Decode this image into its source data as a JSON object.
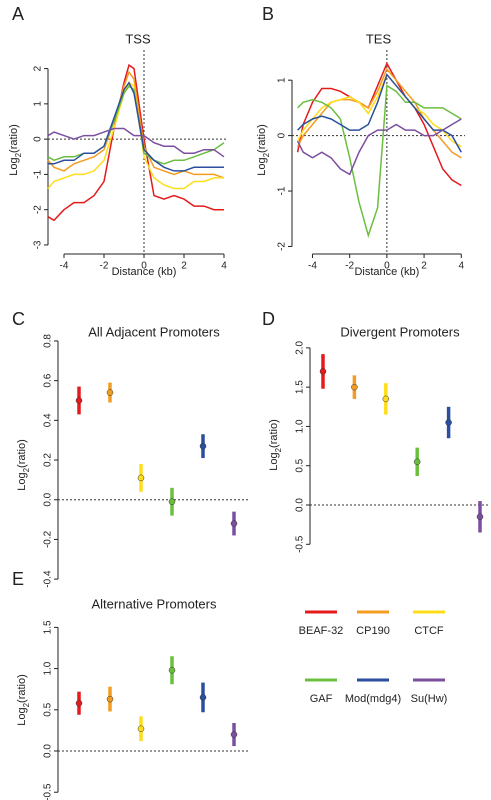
{
  "chart_data": [
    {
      "type": "line",
      "panel": "A",
      "title": "TSS",
      "xlabel": "Distance (kb)",
      "ylabel": [
        "Log",
        "2",
        "(ratio)"
      ],
      "x": [
        -4.8,
        -4.5,
        -4,
        -3.5,
        -3,
        -2.5,
        -2,
        -1.5,
        -1,
        -0.75,
        -0.5,
        0,
        0.5,
        1,
        1.5,
        2,
        2.5,
        3,
        3.5,
        4
      ],
      "xlim": [
        -4.8,
        4.2
      ],
      "xticks": [
        -4,
        -2,
        0,
        2,
        4
      ],
      "ylim": [
        -3.2,
        2.3
      ],
      "yticks": [
        -3,
        -2,
        -1,
        0,
        1,
        2
      ],
      "series": [
        {
          "name": "BEAF-32",
          "color": "#e41a1c",
          "values": [
            -2.2,
            -2.3,
            -2.0,
            -1.8,
            -1.8,
            -1.6,
            -1.2,
            0.3,
            1.6,
            2.1,
            2.0,
            0.0,
            -1.6,
            -1.7,
            -1.6,
            -1.7,
            -1.9,
            -1.9,
            -2.0,
            -2.0
          ]
        },
        {
          "name": "CP190",
          "color": "#f39c1f",
          "values": [
            -0.6,
            -0.8,
            -0.9,
            -0.7,
            -0.6,
            -0.5,
            -0.3,
            0.5,
            1.5,
            1.9,
            1.7,
            -0.2,
            -0.8,
            -0.9,
            -1.0,
            -0.9,
            -1.0,
            -1.0,
            -1.0,
            -1.1
          ]
        },
        {
          "name": "CTCF",
          "color": "#ffdd1a",
          "values": [
            -1.4,
            -1.2,
            -1.1,
            -1.0,
            -1.0,
            -0.9,
            -0.6,
            0.3,
            1.3,
            1.6,
            1.5,
            -0.5,
            -1.1,
            -1.3,
            -1.4,
            -1.4,
            -1.2,
            -1.2,
            -1.1,
            -1.1
          ]
        },
        {
          "name": "GAF",
          "color": "#6abf3f",
          "values": [
            -0.5,
            -0.6,
            -0.5,
            -0.5,
            -0.4,
            -0.4,
            -0.2,
            0.5,
            1.3,
            1.5,
            1.4,
            -0.4,
            -0.6,
            -0.7,
            -0.6,
            -0.6,
            -0.5,
            -0.4,
            -0.3,
            -0.1
          ]
        },
        {
          "name": "Mod(mdg4)",
          "color": "#2b4fa0",
          "values": [
            -0.7,
            -0.7,
            -0.6,
            -0.6,
            -0.4,
            -0.4,
            -0.2,
            0.6,
            1.4,
            1.6,
            1.3,
            -0.3,
            -0.6,
            -0.8,
            -0.9,
            -0.9,
            -0.8,
            -0.8,
            -0.8,
            -0.8
          ]
        },
        {
          "name": "Su(Hw)",
          "color": "#7b4fa0",
          "values": [
            0.1,
            0.2,
            0.1,
            0.0,
            0.1,
            0.1,
            0.2,
            0.3,
            0.3,
            0.2,
            0.1,
            0.1,
            -0.1,
            -0.2,
            -0.2,
            -0.4,
            -0.4,
            -0.3,
            -0.3,
            -0.5
          ]
        }
      ]
    },
    {
      "type": "line",
      "panel": "B",
      "title": "TES",
      "xlabel": "Distance (kb)",
      "ylabel": [
        "Log",
        "2",
        "(ratio)"
      ],
      "x": [
        -4.8,
        -4.5,
        -4,
        -3.5,
        -3,
        -2.5,
        -2,
        -1.5,
        -1,
        -0.5,
        0,
        0.5,
        1,
        1.5,
        2,
        2.5,
        3,
        3.5,
        4
      ],
      "xlim": [
        -5.1,
        4.2
      ],
      "xticks": [
        -4,
        -2,
        0,
        2,
        4
      ],
      "ylim": [
        -2.1,
        1.4
      ],
      "yticks": [
        -2,
        -1,
        0,
        1
      ],
      "series": [
        {
          "name": "BEAF-32",
          "color": "#e41a1c",
          "values": [
            -0.3,
            0.2,
            0.6,
            0.85,
            0.85,
            0.8,
            0.7,
            0.6,
            0.5,
            0.9,
            1.3,
            1.0,
            0.7,
            0.5,
            0.2,
            -0.2,
            -0.6,
            -0.8,
            -0.9
          ]
        },
        {
          "name": "CP190",
          "color": "#f39c1f",
          "values": [
            -0.2,
            0,
            0.2,
            0.4,
            0.6,
            0.65,
            0.65,
            0.6,
            0.5,
            0.8,
            1.2,
            1.0,
            0.8,
            0.6,
            0.3,
            0.1,
            -0.1,
            -0.3,
            -0.4
          ]
        },
        {
          "name": "CTCF",
          "color": "#ffdd1a",
          "values": [
            -0.1,
            0.1,
            0.3,
            0.5,
            0.6,
            0.65,
            0.7,
            0.6,
            0.4,
            0.7,
            1.1,
            0.9,
            0.7,
            0.5,
            0.4,
            0.2,
            0.1,
            -0.1,
            -0.2
          ]
        },
        {
          "name": "GAF",
          "color": "#6abf3f",
          "values": [
            0.5,
            0.6,
            0.65,
            0.6,
            0.5,
            0.3,
            -0.4,
            -1.2,
            -1.8,
            -1.3,
            0.9,
            0.8,
            0.6,
            0.6,
            0.5,
            0.5,
            0.5,
            0.4,
            0.3
          ]
        },
        {
          "name": "Mod(mdg4)",
          "color": "#2b4fa0",
          "values": [
            0.1,
            0.2,
            0.3,
            0.35,
            0.3,
            0.2,
            0.1,
            0.1,
            0.2,
            0.6,
            1.1,
            0.9,
            0.7,
            0.5,
            0.3,
            0.1,
            0.1,
            0.0,
            -0.3
          ]
        },
        {
          "name": "Su(Hw)",
          "color": "#7b4fa0",
          "values": [
            -0.1,
            -0.3,
            -0.4,
            -0.3,
            -0.4,
            -0.6,
            -0.7,
            -0.3,
            0.0,
            0.1,
            0.1,
            0.2,
            0.1,
            0.1,
            0.0,
            0.0,
            0.1,
            0.2,
            0.3
          ]
        }
      ]
    },
    {
      "type": "errorbar",
      "panel": "C",
      "title": "All Adjacent Promoters",
      "ylabel": [
        "Log",
        "2",
        "(ratio)"
      ],
      "ylim": [
        -0.48,
        0.83
      ],
      "yticks": [
        -0.4,
        -0.2,
        {
          "value": 0,
          "label": "0.0"
        },
        0.2,
        0.4,
        0.6,
        0.8
      ],
      "values": [
        0.5,
        0.54,
        0.11,
        -0.01,
        0.27,
        -0.12
      ],
      "errors": [
        0.07,
        0.05,
        0.07,
        0.07,
        0.06,
        0.06
      ],
      "colors": [
        "#e41a1c",
        "#f39c1f",
        "#ffdd1a",
        "#6abf3f",
        "#2b4fa0",
        "#7b4fa0"
      ]
    },
    {
      "type": "errorbar",
      "panel": "D",
      "title": "Divergent Promoters",
      "ylabel": [
        "Log",
        "2",
        "(ratio)"
      ],
      "ylim": [
        -0.7,
        2.1
      ],
      "yticks": [
        -0.5,
        {
          "value": 0,
          "label": "0.0"
        },
        0.5,
        {
          "value": 1,
          "label": "1.0"
        },
        1.5,
        {
          "value": 2,
          "label": "2.0"
        }
      ],
      "values": [
        1.7,
        1.5,
        1.35,
        0.55,
        1.05,
        -0.15
      ],
      "errors": [
        0.22,
        0.15,
        0.2,
        0.18,
        0.2,
        0.2
      ],
      "colors": [
        "#e41a1c",
        "#f39c1f",
        "#ffdd1a",
        "#6abf3f",
        "#2b4fa0",
        "#7b4fa0"
      ]
    },
    {
      "type": "errorbar",
      "panel": "E",
      "title": "Alternative Promoters",
      "ylabel": [
        "Log",
        "2",
        "(ratio)"
      ],
      "ylim": [
        -0.57,
        1.65
      ],
      "yticks": [
        -0.5,
        {
          "value": 0,
          "label": "0.0"
        },
        0.5,
        {
          "value": 1,
          "label": "1.0"
        },
        1.5
      ],
      "values": [
        0.58,
        0.63,
        0.27,
        0.98,
        0.65,
        0.2
      ],
      "errors": [
        0.14,
        0.15,
        0.15,
        0.17,
        0.18,
        0.14
      ],
      "colors": [
        "#e41a1c",
        "#f39c1f",
        "#ffdd1a",
        "#6abf3f",
        "#2b4fa0",
        "#7b4fa0"
      ]
    }
  ]
}
